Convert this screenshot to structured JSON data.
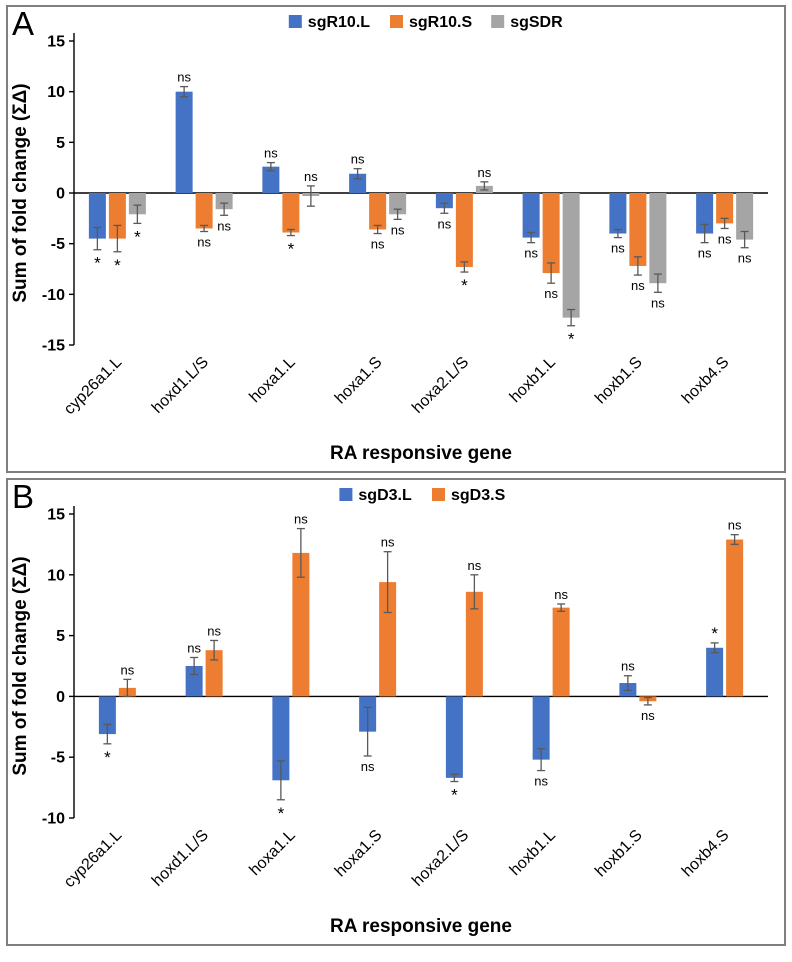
{
  "chart_data": [
    {
      "panel_label": "A",
      "type": "bar",
      "title": "",
      "xlabel": "RA responsive gene",
      "ylabel": "Sum of fold change (ΣΔ)",
      "ylim": [
        -15,
        15
      ],
      "ytick_step": 5,
      "grid": false,
      "legend_position": "top",
      "categories": [
        "cyp26a1.L",
        "hoxd1.L/S",
        "hoxa1.L",
        "hoxa1.S",
        "hoxa2.L/S",
        "hoxb1.L",
        "hoxb1.S",
        "hoxb4.S"
      ],
      "series": [
        {
          "name": "sgR10.L",
          "color": "#4472C4",
          "values": [
            -4.5,
            10.0,
            2.6,
            1.9,
            -1.5,
            -4.4,
            -4.0,
            -4.0
          ],
          "errors": [
            1.1,
            0.5,
            0.4,
            0.5,
            0.5,
            0.5,
            0.4,
            0.9
          ],
          "sig": [
            "*",
            "ns",
            "ns",
            "ns",
            "ns",
            "ns",
            "ns",
            "ns"
          ],
          "sig_side": [
            "down",
            "up",
            "up",
            "up",
            "down",
            "down",
            "down",
            "down"
          ]
        },
        {
          "name": "sgR10.S",
          "color": "#ED7D31",
          "values": [
            -4.5,
            -3.5,
            -3.9,
            -3.6,
            -7.3,
            -7.9,
            -7.2,
            -3.0
          ],
          "errors": [
            1.3,
            0.3,
            0.3,
            0.4,
            0.5,
            1.0,
            0.9,
            0.5
          ],
          "sig": [
            "*",
            "ns",
            "*",
            "ns",
            "*",
            "ns",
            "ns",
            "ns"
          ],
          "sig_side": [
            "down",
            "down",
            "down",
            "down",
            "down",
            "down",
            "down",
            "down"
          ]
        },
        {
          "name": "sgSDR",
          "color": "#A5A5A5",
          "values": [
            -2.1,
            -1.6,
            -0.3,
            -2.1,
            0.7,
            -12.3,
            -8.9,
            -4.6
          ],
          "errors": [
            0.9,
            0.6,
            1.0,
            0.5,
            0.4,
            0.8,
            0.9,
            0.8
          ],
          "sig": [
            "*",
            "ns",
            "ns",
            "ns",
            "ns",
            "*",
            "ns",
            "ns"
          ],
          "sig_side": [
            "down",
            "down",
            "up",
            "down",
            "up",
            "down",
            "down",
            "down"
          ]
        }
      ]
    },
    {
      "panel_label": "B",
      "type": "bar",
      "title": "",
      "xlabel": "RA responsive gene",
      "ylabel": "Sum of fold change (ΣΔ)",
      "ylim": [
        -10,
        15
      ],
      "ytick_step": 5,
      "grid": false,
      "legend_position": "top",
      "categories": [
        "cyp26a1.L",
        "hoxd1.L/S",
        "hoxa1.L",
        "hoxa1.S",
        "hoxa2.L/S",
        "hoxb1.L",
        "hoxb1.S",
        "hoxb4.S"
      ],
      "series": [
        {
          "name": "sgD3.L",
          "color": "#4472C4",
          "values": [
            -3.1,
            2.5,
            -6.9,
            -2.9,
            -6.7,
            -5.2,
            1.1,
            4.0
          ],
          "errors": [
            0.8,
            0.7,
            1.6,
            2.0,
            0.3,
            0.9,
            0.6,
            0.4
          ],
          "sig": [
            "*",
            "ns",
            "*",
            "ns",
            "*",
            "ns",
            "ns",
            "*"
          ],
          "sig_side": [
            "down",
            "up",
            "down",
            "down",
            "down",
            "down",
            "up",
            "up"
          ]
        },
        {
          "name": "sgD3.S",
          "color": "#ED7D31",
          "values": [
            0.7,
            3.8,
            11.8,
            9.4,
            8.6,
            7.3,
            -0.4,
            12.9
          ],
          "errors": [
            0.7,
            0.8,
            2.0,
            2.5,
            1.4,
            0.3,
            0.3,
            0.4
          ],
          "sig": [
            "ns",
            "ns",
            "ns",
            "ns",
            "ns",
            "ns",
            "ns",
            "ns"
          ],
          "sig_side": [
            "up",
            "up",
            "up",
            "up",
            "up",
            "up",
            "down",
            "up"
          ]
        }
      ]
    }
  ]
}
